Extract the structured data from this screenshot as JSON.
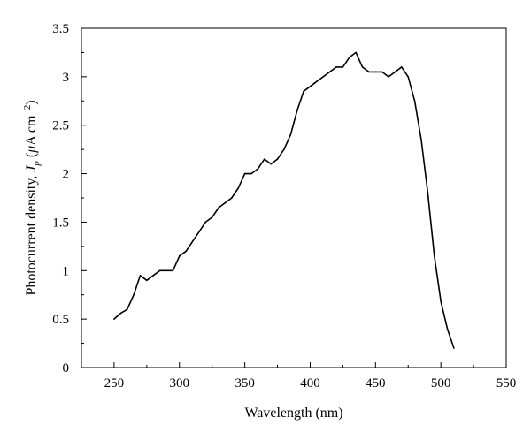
{
  "chart_data": {
    "type": "line",
    "xlabel": "Wavelength (nm)",
    "ylabel_parts": {
      "prefix": "Photocurrent density, ",
      "symbol": "J",
      "subscript": "p",
      "unit_open": " (",
      "unit_mu": "μ",
      "unit_rest": "A cm",
      "unit_exp": "−2",
      "unit_close": ")"
    },
    "xlim": [
      225,
      550
    ],
    "ylim": [
      0,
      3.5
    ],
    "x_ticks": [
      "250",
      "300",
      "350",
      "400",
      "450",
      "500",
      "550"
    ],
    "y_ticks": [
      "0",
      "0.5",
      "1",
      "1.5",
      "2",
      "2.5",
      "3",
      "3.5"
    ],
    "grid": false,
    "series": [
      {
        "x": [
          250,
          255,
          260,
          265,
          270,
          275,
          280,
          285,
          290,
          295,
          300,
          305,
          310,
          315,
          320,
          325,
          330,
          335,
          340,
          345,
          350,
          355,
          360,
          365,
          370,
          375,
          380,
          385,
          390,
          395,
          400,
          405,
          410,
          415,
          420,
          425,
          430,
          435,
          440,
          445,
          450,
          455,
          460,
          465,
          470,
          475,
          480,
          485,
          490,
          495,
          500,
          505,
          510
        ],
        "values": [
          0.5,
          0.56,
          0.6,
          0.75,
          0.95,
          0.9,
          0.95,
          1.0,
          1.0,
          1.0,
          1.15,
          1.2,
          1.3,
          1.4,
          1.5,
          1.55,
          1.65,
          1.7,
          1.75,
          1.85,
          2.0,
          2.0,
          2.05,
          2.15,
          2.1,
          2.15,
          2.25,
          2.4,
          2.65,
          2.85,
          2.9,
          2.95,
          3.0,
          3.05,
          3.1,
          3.1,
          3.2,
          3.25,
          3.1,
          3.05,
          3.05,
          3.05,
          3.0,
          3.05,
          3.1,
          3.0,
          2.75,
          2.35,
          1.8,
          1.15,
          0.68,
          0.4,
          0.2
        ]
      }
    ]
  }
}
